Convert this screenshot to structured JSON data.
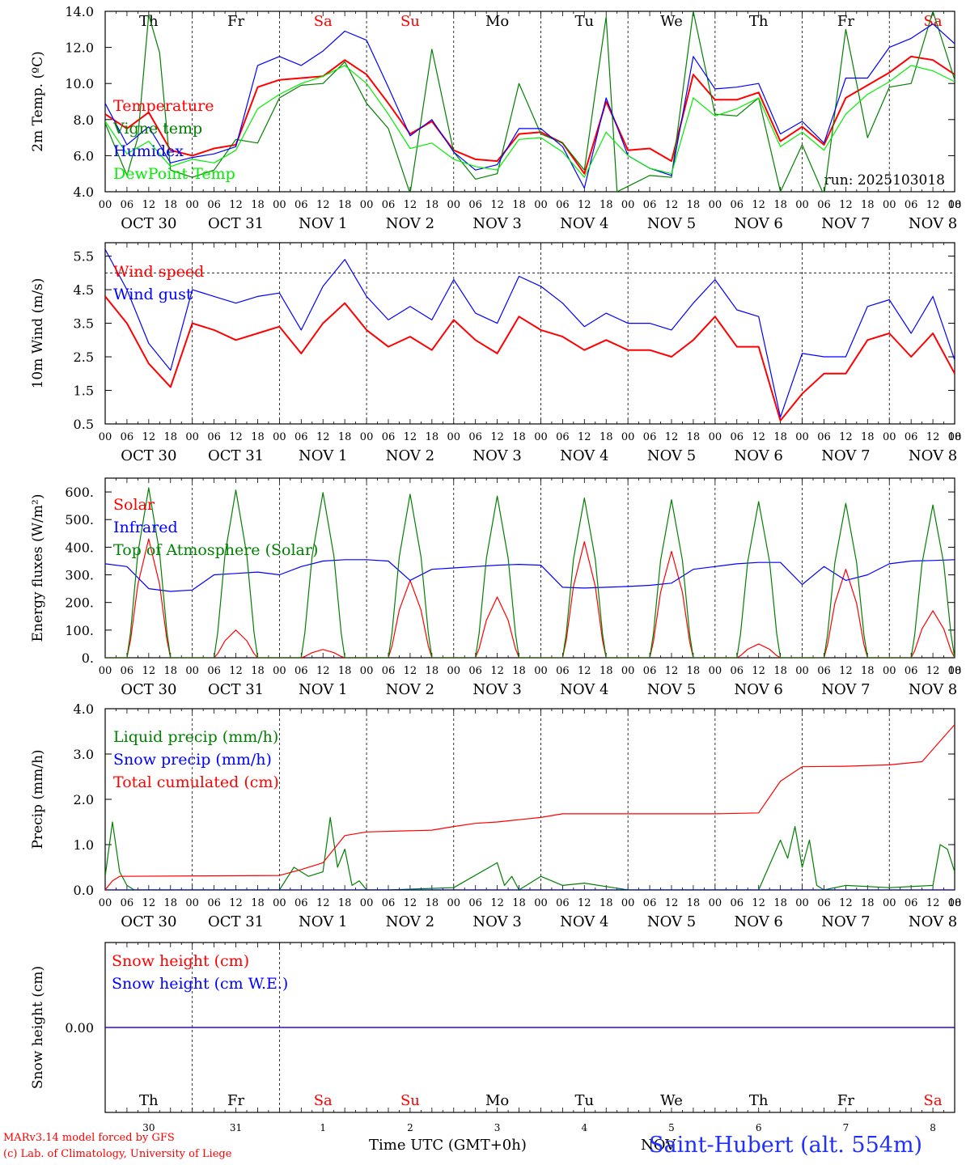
{
  "days": {
    "weekdays": [
      "Th",
      "Fr",
      "Sa",
      "Su",
      "Mo",
      "Tu",
      "We",
      "Th",
      "Fr",
      "Sa"
    ],
    "weekend": [
      false,
      false,
      true,
      true,
      false,
      false,
      false,
      false,
      false,
      true
    ],
    "dates": [
      "OCT 30",
      "OCT 31",
      "NOV  1",
      "NOV  2",
      "NOV  3",
      "NOV  4",
      "NOV  5",
      "NOV  6",
      "NOV  7",
      "NOV  8"
    ],
    "day_numbers": [
      "30",
      "31",
      "1",
      "2",
      "3",
      "4",
      "5",
      "6",
      "7",
      "8"
    ],
    "hour_ticks": [
      "00",
      "06",
      "12",
      "18"
    ],
    "end_tick": "00"
  },
  "colors": {
    "red": "#ff0000",
    "green": "#008000",
    "blue": "#0000ff",
    "lightgreen": "#00ee00",
    "black": "#000000"
  },
  "footer": {
    "model": "MARv3.14 model forced by GFS",
    "copyright": "(c) Lab. of Climatology, University of Liege",
    "time_label": "Time UTC (GMT+0h)",
    "overlay": "NOV",
    "station": "Saint-Hubert (alt. 554m)"
  },
  "chart_data": [
    {
      "id": "temperature",
      "type": "line",
      "ylabel": "2m Temp. (ºC)",
      "ylim": [
        4.0,
        14.0
      ],
      "yticks": [
        4.0,
        6.0,
        8.0,
        10.0,
        12.0,
        14.0
      ],
      "ytick_labels": [
        "4.0",
        "6.0",
        "8.0",
        "10.0",
        "12.0",
        "14.0"
      ],
      "annotation": "run: 2025103018",
      "x_unit": "hours since OCT 30 00 UTC",
      "series": [
        {
          "name": "Temperature",
          "color": "red",
          "x": [
            0,
            6,
            12,
            18,
            24,
            30,
            36,
            42,
            48,
            54,
            60,
            66,
            72,
            78,
            84,
            90,
            96,
            102,
            108,
            114,
            120,
            126,
            132,
            138,
            144,
            150,
            156,
            162,
            168,
            174,
            180,
            186,
            192,
            198,
            204,
            210,
            216,
            222,
            228,
            234
          ],
          "y": [
            8.3,
            7.5,
            8.4,
            6.3,
            6.0,
            6.4,
            6.6,
            9.8,
            10.2,
            10.3,
            10.4,
            11.3,
            10.5,
            8.9,
            7.2,
            7.9,
            6.3,
            5.8,
            5.7,
            7.2,
            7.3,
            6.7,
            5.0,
            9.0,
            6.3,
            6.4,
            5.7,
            10.5,
            9.1,
            9.1,
            9.5,
            6.8,
            7.6,
            6.6,
            9.2,
            9.9,
            10.6,
            11.5,
            11.3,
            10.5
          ]
        },
        {
          "name": "Vigne temp",
          "color": "green",
          "x": [
            0,
            6,
            9,
            12,
            15,
            18,
            24,
            30,
            36,
            42,
            48,
            54,
            60,
            66,
            72,
            78,
            84,
            90,
            96,
            102,
            108,
            114,
            120,
            126,
            132,
            135,
            138,
            141,
            144,
            150,
            156,
            162,
            168,
            174,
            180,
            186,
            192,
            198,
            204,
            210,
            216,
            222,
            228,
            234
          ],
          "y": [
            7.8,
            4.9,
            7.0,
            13.8,
            11.7,
            5.2,
            4.8,
            5.2,
            6.9,
            6.7,
            9.2,
            9.9,
            10.0,
            11.2,
            8.9,
            7.5,
            3.9,
            11.9,
            6.2,
            4.7,
            5.0,
            10.0,
            7.2,
            6.7,
            5.2,
            9.5,
            13.7,
            4.0,
            4.3,
            4.9,
            4.8,
            14.0,
            8.3,
            8.2,
            9.2,
            4.0,
            6.6,
            3.8,
            13.0,
            7.0,
            9.8,
            10.0,
            14.0,
            10.2
          ]
        },
        {
          "name": "Humidex",
          "color": "blue",
          "x": [
            0,
            6,
            12,
            18,
            24,
            30,
            36,
            42,
            48,
            54,
            60,
            66,
            72,
            78,
            84,
            90,
            96,
            102,
            108,
            114,
            120,
            126,
            132,
            138,
            144,
            150,
            156,
            162,
            168,
            174,
            180,
            186,
            192,
            198,
            204,
            210,
            216,
            222,
            228,
            234
          ],
          "y": [
            8.9,
            6.6,
            7.6,
            5.6,
            5.9,
            6.1,
            6.5,
            11.0,
            11.5,
            11.0,
            11.8,
            12.9,
            12.4,
            9.8,
            7.1,
            8.0,
            6.2,
            5.2,
            5.5,
            7.5,
            7.5,
            6.5,
            4.2,
            9.2,
            6.0,
            5.3,
            4.9,
            11.5,
            9.7,
            9.8,
            10.0,
            7.2,
            7.9,
            6.7,
            10.3,
            10.3,
            12.0,
            12.5,
            13.3,
            12.2
          ]
        },
        {
          "name": "DewPoint Temp",
          "color": "lightgreen",
          "x": [
            0,
            6,
            12,
            18,
            24,
            30,
            36,
            42,
            48,
            54,
            60,
            66,
            72,
            78,
            84,
            90,
            96,
            102,
            108,
            114,
            120,
            126,
            132,
            138,
            144,
            150,
            156,
            162,
            168,
            174,
            180,
            186,
            192,
            198,
            204,
            210,
            216,
            222,
            228,
            234
          ],
          "y": [
            7.9,
            6.1,
            6.8,
            5.4,
            5.8,
            5.6,
            6.3,
            8.6,
            9.4,
            10.0,
            10.4,
            11.0,
            10.0,
            8.3,
            6.4,
            6.7,
            5.8,
            5.4,
            5.2,
            6.9,
            7.0,
            6.2,
            4.8,
            7.3,
            6.0,
            5.3,
            5.0,
            9.2,
            8.2,
            8.6,
            9.2,
            6.5,
            7.3,
            6.3,
            8.3,
            9.4,
            10.1,
            11.0,
            10.7,
            10.1
          ]
        }
      ]
    },
    {
      "id": "wind",
      "type": "line",
      "ylabel": "10m Wind (m/s)",
      "ylim": [
        0.5,
        5.9
      ],
      "yticks": [
        0.5,
        1.5,
        2.5,
        3.5,
        4.5,
        5.5
      ],
      "ytick_labels": [
        "0.5",
        "1.5",
        "2.5",
        "3.5",
        "4.5",
        "5.5"
      ],
      "reference_line": 5.0,
      "series": [
        {
          "name": "Wind speed",
          "color": "red",
          "x": [
            0,
            6,
            12,
            18,
            24,
            30,
            36,
            42,
            48,
            54,
            60,
            66,
            72,
            78,
            84,
            90,
            96,
            102,
            108,
            114,
            120,
            126,
            132,
            138,
            144,
            150,
            156,
            162,
            168,
            174,
            180,
            186,
            192,
            198,
            204,
            210,
            216,
            222,
            228,
            234
          ],
          "y": [
            4.3,
            3.5,
            2.3,
            1.6,
            3.5,
            3.3,
            3.0,
            3.2,
            3.4,
            2.6,
            3.5,
            4.1,
            3.3,
            2.8,
            3.1,
            2.7,
            3.6,
            3.0,
            2.6,
            3.7,
            3.3,
            3.1,
            2.7,
            3.0,
            2.7,
            2.7,
            2.5,
            3.0,
            3.7,
            2.8,
            2.8,
            0.6,
            1.4,
            2.0,
            2.0,
            3.0,
            3.2,
            2.5,
            3.2,
            2.0
          ]
        },
        {
          "name": "Wind gust",
          "color": "blue",
          "x": [
            0,
            6,
            12,
            18,
            24,
            30,
            36,
            42,
            48,
            54,
            60,
            66,
            72,
            78,
            84,
            90,
            96,
            102,
            108,
            114,
            120,
            126,
            132,
            138,
            144,
            150,
            156,
            162,
            168,
            174,
            180,
            186,
            192,
            198,
            204,
            210,
            216,
            222,
            228,
            234
          ],
          "y": [
            5.7,
            4.5,
            2.9,
            2.1,
            4.5,
            4.3,
            4.1,
            4.3,
            4.4,
            3.3,
            4.6,
            5.4,
            4.3,
            3.6,
            4.0,
            3.6,
            4.8,
            3.8,
            3.5,
            4.9,
            4.6,
            4.1,
            3.4,
            3.8,
            3.5,
            3.5,
            3.3,
            4.1,
            4.8,
            3.9,
            3.7,
            0.7,
            2.6,
            2.5,
            2.5,
            4.0,
            4.2,
            3.2,
            4.3,
            2.4
          ]
        }
      ]
    },
    {
      "id": "energy",
      "type": "line",
      "ylabel": "Energy fluxes (W/m²)",
      "ylim": [
        0,
        650
      ],
      "yticks": [
        0,
        100,
        200,
        300,
        400,
        500,
        600
      ],
      "ytick_labels": [
        "0.",
        "100.",
        "200.",
        "300.",
        "400.",
        "500.",
        "600."
      ],
      "series": [
        {
          "name": "Solar",
          "color": "red",
          "peak_hour": 12,
          "daily_peak": [
            430,
            100,
            30,
            280,
            220,
            420,
            385,
            50,
            320,
            170
          ]
        },
        {
          "name": "Infrared",
          "color": "blue",
          "x": [
            0,
            6,
            12,
            18,
            24,
            30,
            36,
            42,
            48,
            54,
            60,
            66,
            72,
            78,
            84,
            90,
            96,
            102,
            108,
            114,
            120,
            126,
            132,
            138,
            144,
            150,
            156,
            162,
            168,
            174,
            180,
            186,
            192,
            198,
            204,
            210,
            216,
            222,
            228,
            234
          ],
          "y": [
            340,
            330,
            250,
            240,
            245,
            300,
            305,
            310,
            300,
            330,
            350,
            355,
            355,
            350,
            280,
            320,
            325,
            330,
            335,
            338,
            335,
            255,
            252,
            255,
            258,
            262,
            270,
            320,
            330,
            340,
            345,
            345,
            265,
            330,
            280,
            300,
            340,
            350,
            352,
            355
          ]
        },
        {
          "name": "Top of Atmosphere (Solar)",
          "color": "green",
          "peak_hour": 12,
          "daily_peak": [
            615,
            607,
            598,
            592,
            585,
            578,
            572,
            565,
            559,
            553
          ]
        }
      ]
    },
    {
      "id": "precip",
      "type": "line",
      "ylabel": "Precip (mm/h)",
      "ylim": [
        0,
        4.0
      ],
      "yticks": [
        0.0,
        1.0,
        2.0,
        3.0,
        4.0
      ],
      "ytick_labels": [
        "0.0",
        "1.0",
        "2.0",
        "3.0",
        "4.0"
      ],
      "series": [
        {
          "name": "Liquid precip (mm/h)",
          "color": "green",
          "x": [
            0,
            2,
            4,
            6,
            8,
            10,
            24,
            48,
            52,
            56,
            60,
            62,
            64,
            66,
            68,
            70,
            72,
            78,
            96,
            108,
            110,
            112,
            114,
            120,
            126,
            132,
            144,
            156,
            162,
            168,
            180,
            186,
            188,
            190,
            192,
            194,
            196,
            198,
            204,
            216,
            228,
            230,
            232,
            234
          ],
          "y": [
            0.3,
            1.5,
            0.4,
            0.1,
            0.0,
            0.0,
            0.0,
            0.0,
            0.5,
            0.3,
            0.4,
            1.6,
            0.5,
            0.9,
            0.1,
            0.2,
            0.0,
            0.0,
            0.05,
            0.6,
            0.1,
            0.3,
            0.0,
            0.3,
            0.1,
            0.15,
            0.0,
            0.0,
            0.0,
            0.0,
            0.0,
            1.1,
            0.7,
            1.4,
            0.5,
            1.1,
            0.1,
            0.0,
            0.1,
            0.05,
            0.1,
            1.0,
            0.9,
            0.4
          ]
        },
        {
          "name": "Snow precip (mm/h)",
          "color": "blue",
          "x": [
            0,
            234
          ],
          "y": [
            0.0,
            0.0
          ]
        },
        {
          "name": "Total cumulated (cm)",
          "color": "red",
          "x": [
            0,
            2,
            4,
            48,
            54,
            60,
            66,
            72,
            90,
            96,
            102,
            108,
            114,
            120,
            126,
            144,
            168,
            180,
            186,
            192,
            204,
            216,
            225,
            234
          ],
          "y": [
            0.0,
            0.2,
            0.3,
            0.32,
            0.45,
            0.6,
            1.2,
            1.28,
            1.32,
            1.4,
            1.47,
            1.5,
            1.55,
            1.6,
            1.68,
            1.68,
            1.68,
            1.7,
            2.4,
            2.72,
            2.73,
            2.76,
            2.83,
            3.65
          ]
        }
      ]
    },
    {
      "id": "snow",
      "type": "line",
      "ylabel": "Snow height (cm)",
      "ylim": [
        -1,
        1
      ],
      "yticks": [
        0.0
      ],
      "ytick_labels": [
        "0.00"
      ],
      "series": [
        {
          "name": "Snow height (cm)",
          "color": "red",
          "x": [
            0,
            234
          ],
          "y": [
            0.0,
            0.0
          ]
        },
        {
          "name": "Snow height (cm W.E.)",
          "color": "blue",
          "x": [
            0,
            234
          ],
          "y": [
            0.0,
            0.0
          ]
        }
      ]
    }
  ]
}
